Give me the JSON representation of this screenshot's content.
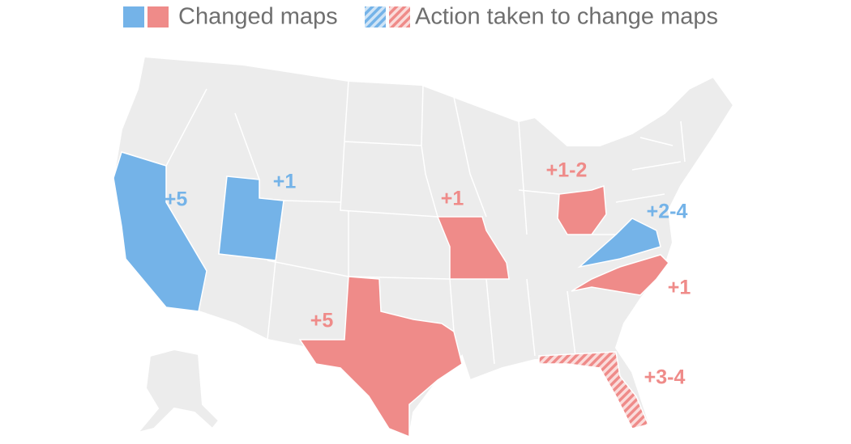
{
  "legend": [
    {
      "label": "Changed maps"
    },
    {
      "label": "Action taken to change maps"
    }
  ],
  "annotations": [
    {
      "state": "California",
      "label": "+5"
    },
    {
      "state": "Utah",
      "label": "+1"
    },
    {
      "state": "Missouri",
      "label": "+1"
    },
    {
      "state": "Ohio",
      "label": "+1-2"
    },
    {
      "state": "Virginia",
      "label": "+2-4"
    },
    {
      "state": "North Carolina",
      "label": "+1"
    },
    {
      "state": "Texas",
      "label": "+5"
    },
    {
      "state": "Florida",
      "label": "+3-4"
    }
  ]
}
